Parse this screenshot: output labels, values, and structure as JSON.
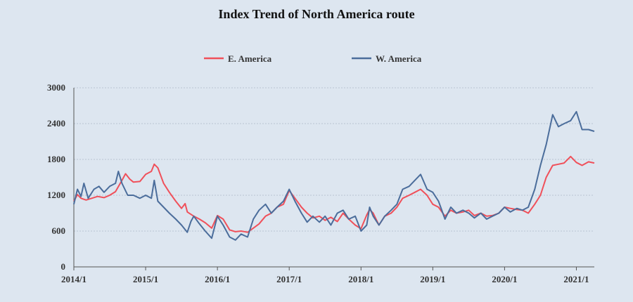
{
  "chart_data": {
    "type": "line",
    "title": "Index Trend of North America route",
    "xlabel": "",
    "ylabel": "",
    "ylim": [
      0,
      3000
    ],
    "yticks": [
      0,
      600,
      1200,
      1800,
      2400,
      3000
    ],
    "xlim": [
      2014.0,
      2021.25
    ],
    "xticks": [
      "2014/1",
      "2015/1",
      "2016/1",
      "2017/1",
      "2018/1",
      "2019/1",
      "2020/1",
      "2021/1"
    ],
    "grid": "horizontal dotted",
    "legend_position": "top-center",
    "colors": {
      "background": "#dde6f0",
      "grid": "#b9c4d2",
      "axis": "#555555"
    },
    "series": [
      {
        "name": "E. America",
        "color": "#f0505a",
        "points": [
          [
            2014.0,
            1100
          ],
          [
            2014.05,
            1210
          ],
          [
            2014.1,
            1150
          ],
          [
            2014.17,
            1120
          ],
          [
            2014.25,
            1150
          ],
          [
            2014.33,
            1180
          ],
          [
            2014.42,
            1160
          ],
          [
            2014.5,
            1200
          ],
          [
            2014.58,
            1260
          ],
          [
            2014.67,
            1450
          ],
          [
            2014.72,
            1560
          ],
          [
            2014.78,
            1470
          ],
          [
            2014.83,
            1420
          ],
          [
            2014.92,
            1430
          ],
          [
            2015.0,
            1550
          ],
          [
            2015.08,
            1600
          ],
          [
            2015.12,
            1720
          ],
          [
            2015.17,
            1660
          ],
          [
            2015.25,
            1400
          ],
          [
            2015.33,
            1250
          ],
          [
            2015.42,
            1100
          ],
          [
            2015.5,
            980
          ],
          [
            2015.55,
            1060
          ],
          [
            2015.58,
            920
          ],
          [
            2015.67,
            850
          ],
          [
            2015.75,
            800
          ],
          [
            2015.83,
            740
          ],
          [
            2015.92,
            650
          ],
          [
            2016.0,
            860
          ],
          [
            2016.08,
            800
          ],
          [
            2016.17,
            620
          ],
          [
            2016.25,
            590
          ],
          [
            2016.33,
            600
          ],
          [
            2016.42,
            580
          ],
          [
            2016.5,
            650
          ],
          [
            2016.58,
            720
          ],
          [
            2016.67,
            850
          ],
          [
            2016.75,
            900
          ],
          [
            2016.83,
            1000
          ],
          [
            2016.92,
            1050
          ],
          [
            2017.0,
            1280
          ],
          [
            2017.08,
            1150
          ],
          [
            2017.17,
            1000
          ],
          [
            2017.25,
            900
          ],
          [
            2017.33,
            820
          ],
          [
            2017.42,
            850
          ],
          [
            2017.5,
            780
          ],
          [
            2017.58,
            830
          ],
          [
            2017.67,
            760
          ],
          [
            2017.75,
            900
          ],
          [
            2017.83,
            800
          ],
          [
            2017.92,
            700
          ],
          [
            2018.0,
            640
          ],
          [
            2018.08,
            870
          ],
          [
            2018.12,
            960
          ],
          [
            2018.17,
            900
          ],
          [
            2018.25,
            700
          ],
          [
            2018.33,
            850
          ],
          [
            2018.42,
            900
          ],
          [
            2018.5,
            1000
          ],
          [
            2018.58,
            1150
          ],
          [
            2018.67,
            1200
          ],
          [
            2018.75,
            1250
          ],
          [
            2018.83,
            1300
          ],
          [
            2018.92,
            1200
          ],
          [
            2019.0,
            1050
          ],
          [
            2019.08,
            1000
          ],
          [
            2019.17,
            850
          ],
          [
            2019.25,
            950
          ],
          [
            2019.33,
            900
          ],
          [
            2019.42,
            920
          ],
          [
            2019.5,
            950
          ],
          [
            2019.58,
            860
          ],
          [
            2019.67,
            900
          ],
          [
            2019.75,
            850
          ],
          [
            2019.83,
            860
          ],
          [
            2019.92,
            900
          ],
          [
            2020.0,
            1000
          ],
          [
            2020.08,
            980
          ],
          [
            2020.17,
            960
          ],
          [
            2020.25,
            950
          ],
          [
            2020.33,
            900
          ],
          [
            2020.42,
            1050
          ],
          [
            2020.5,
            1200
          ],
          [
            2020.58,
            1500
          ],
          [
            2020.67,
            1700
          ],
          [
            2020.75,
            1720
          ],
          [
            2020.83,
            1740
          ],
          [
            2020.92,
            1850
          ],
          [
            2021.0,
            1750
          ],
          [
            2021.08,
            1700
          ],
          [
            2021.17,
            1760
          ],
          [
            2021.25,
            1740
          ]
        ]
      },
      {
        "name": "W. America",
        "color": "#4b6d9b",
        "points": [
          [
            2014.0,
            1050
          ],
          [
            2014.05,
            1300
          ],
          [
            2014.1,
            1180
          ],
          [
            2014.14,
            1400
          ],
          [
            2014.2,
            1150
          ],
          [
            2014.28,
            1300
          ],
          [
            2014.35,
            1350
          ],
          [
            2014.42,
            1250
          ],
          [
            2014.5,
            1350
          ],
          [
            2014.58,
            1400
          ],
          [
            2014.62,
            1600
          ],
          [
            2014.67,
            1400
          ],
          [
            2014.75,
            1200
          ],
          [
            2014.83,
            1200
          ],
          [
            2014.92,
            1150
          ],
          [
            2015.0,
            1200
          ],
          [
            2015.08,
            1150
          ],
          [
            2015.12,
            1450
          ],
          [
            2015.17,
            1100
          ],
          [
            2015.25,
            1000
          ],
          [
            2015.33,
            900
          ],
          [
            2015.42,
            800
          ],
          [
            2015.5,
            700
          ],
          [
            2015.58,
            580
          ],
          [
            2015.63,
            760
          ],
          [
            2015.67,
            850
          ],
          [
            2015.75,
            720
          ],
          [
            2015.83,
            600
          ],
          [
            2015.92,
            480
          ],
          [
            2016.0,
            850
          ],
          [
            2016.08,
            700
          ],
          [
            2016.17,
            500
          ],
          [
            2016.25,
            450
          ],
          [
            2016.33,
            550
          ],
          [
            2016.42,
            500
          ],
          [
            2016.5,
            800
          ],
          [
            2016.58,
            950
          ],
          [
            2016.67,
            1050
          ],
          [
            2016.75,
            900
          ],
          [
            2016.83,
            1000
          ],
          [
            2016.92,
            1100
          ],
          [
            2017.0,
            1300
          ],
          [
            2017.08,
            1100
          ],
          [
            2017.17,
            900
          ],
          [
            2017.25,
            750
          ],
          [
            2017.33,
            850
          ],
          [
            2017.42,
            750
          ],
          [
            2017.5,
            850
          ],
          [
            2017.58,
            700
          ],
          [
            2017.67,
            900
          ],
          [
            2017.75,
            950
          ],
          [
            2017.83,
            800
          ],
          [
            2017.92,
            850
          ],
          [
            2018.0,
            600
          ],
          [
            2018.08,
            700
          ],
          [
            2018.12,
            1000
          ],
          [
            2018.17,
            850
          ],
          [
            2018.25,
            700
          ],
          [
            2018.33,
            850
          ],
          [
            2018.42,
            950
          ],
          [
            2018.5,
            1050
          ],
          [
            2018.58,
            1300
          ],
          [
            2018.67,
            1350
          ],
          [
            2018.75,
            1450
          ],
          [
            2018.83,
            1550
          ],
          [
            2018.92,
            1300
          ],
          [
            2019.0,
            1250
          ],
          [
            2019.08,
            1100
          ],
          [
            2019.17,
            800
          ],
          [
            2019.25,
            1000
          ],
          [
            2019.33,
            900
          ],
          [
            2019.42,
            950
          ],
          [
            2019.5,
            900
          ],
          [
            2019.58,
            820
          ],
          [
            2019.67,
            900
          ],
          [
            2019.75,
            800
          ],
          [
            2019.83,
            850
          ],
          [
            2019.92,
            900
          ],
          [
            2020.0,
            1000
          ],
          [
            2020.08,
            920
          ],
          [
            2020.17,
            980
          ],
          [
            2020.25,
            950
          ],
          [
            2020.33,
            1000
          ],
          [
            2020.42,
            1300
          ],
          [
            2020.5,
            1700
          ],
          [
            2020.58,
            2050
          ],
          [
            2020.67,
            2550
          ],
          [
            2020.75,
            2350
          ],
          [
            2020.83,
            2400
          ],
          [
            2020.92,
            2450
          ],
          [
            2021.0,
            2600
          ],
          [
            2021.08,
            2300
          ],
          [
            2021.17,
            2300
          ],
          [
            2021.25,
            2270
          ]
        ]
      }
    ]
  }
}
